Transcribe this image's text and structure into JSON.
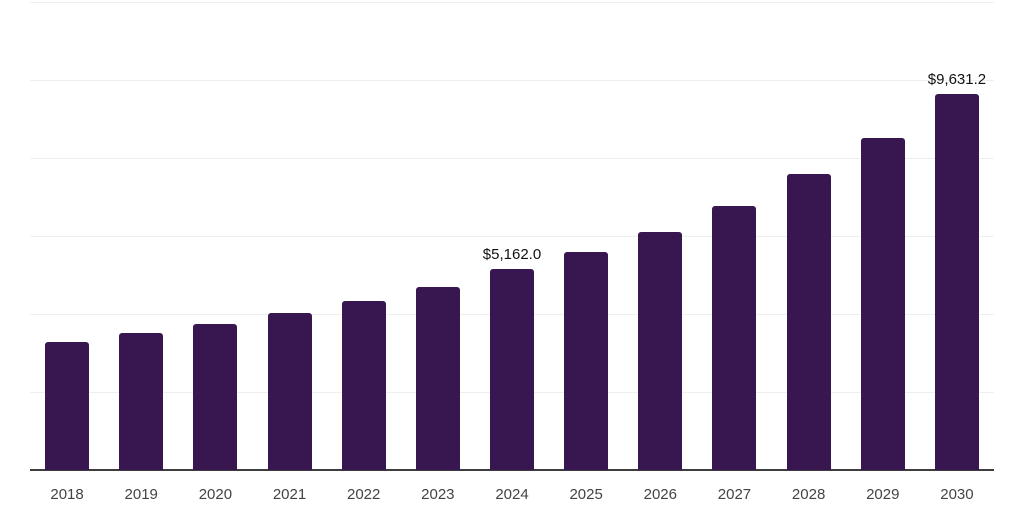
{
  "chart_data": {
    "type": "bar",
    "title": "",
    "xlabel": "",
    "ylabel": "",
    "categories": [
      "2018",
      "2019",
      "2020",
      "2021",
      "2022",
      "2023",
      "2024",
      "2025",
      "2026",
      "2027",
      "2028",
      "2029",
      "2030"
    ],
    "values": [
      3274,
      3504,
      3735,
      4016,
      4323,
      4681,
      5162.0,
      5602,
      6114,
      6779,
      7597,
      8518,
      9631.2
    ],
    "data_labels": {
      "2024": "$5,162.0",
      "2030": "$9,631.2"
    },
    "ylim": [
      0,
      12000
    ],
    "gridline_step": 2000,
    "grid": "horizontal",
    "legend": "none",
    "bar_color": "#381650",
    "axis_color": "#3d3d3d",
    "gridline_color": "#efefef",
    "tick_label_color": "#444444",
    "value_label_color": "#111111"
  }
}
